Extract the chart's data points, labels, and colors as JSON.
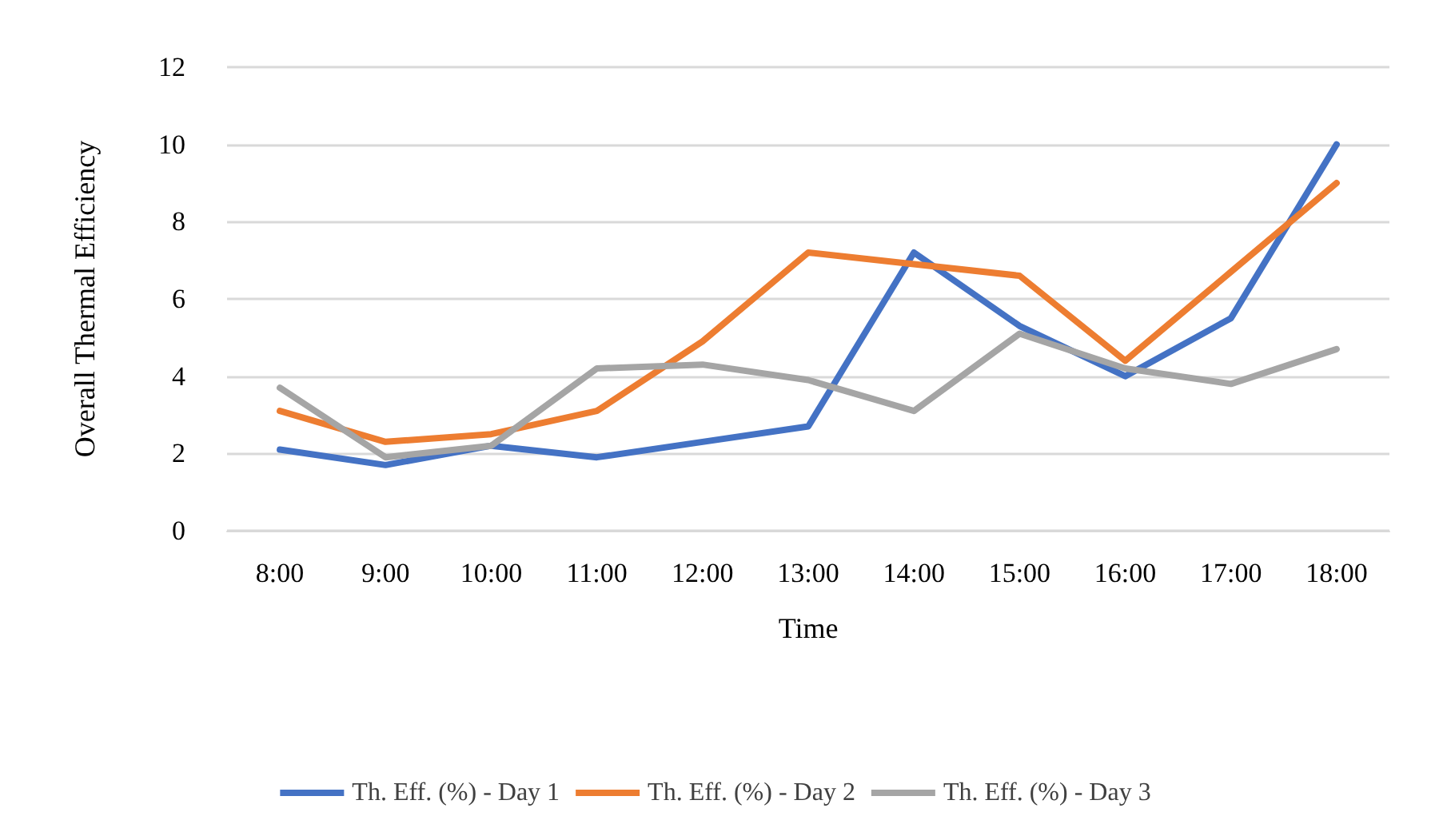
{
  "chart_data": {
    "type": "line",
    "xlabel": "Time",
    "ylabel": "Overall Thermal Efficiency",
    "categories": [
      "8:00",
      "9:00",
      "10:00",
      "11:00",
      "12:00",
      "13:00",
      "14:00",
      "15:00",
      "16:00",
      "17:00",
      "18:00"
    ],
    "series": [
      {
        "name": "Th. Eff. (%) - Day 1",
        "color": "#4472c4",
        "values": [
          2.1,
          1.7,
          2.2,
          1.9,
          2.3,
          2.7,
          7.2,
          5.3,
          4.0,
          5.5,
          10.0
        ]
      },
      {
        "name": "Th. Eff. (%) - Day 2",
        "color": "#ed7d31",
        "values": [
          3.1,
          2.3,
          2.5,
          3.1,
          4.9,
          7.2,
          6.9,
          6.6,
          4.4,
          6.7,
          9.0
        ]
      },
      {
        "name": "Th. Eff. (%) - Day 3",
        "color": "#a5a5a5",
        "values": [
          3.7,
          1.9,
          2.2,
          4.2,
          4.3,
          3.9,
          3.1,
          5.1,
          4.2,
          3.8,
          4.7
        ]
      }
    ],
    "ylim": [
      0,
      12
    ],
    "yticks": [
      0,
      2,
      4,
      6,
      8,
      10,
      12
    ],
    "grid": "y",
    "legend": "bottom",
    "marker": "none",
    "line_style": "solid"
  }
}
